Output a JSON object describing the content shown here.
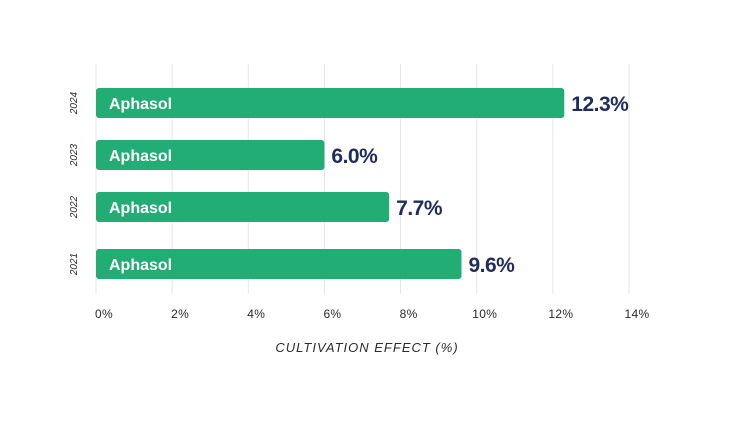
{
  "chart_data": {
    "type": "bar",
    "orientation": "horizontal",
    "categories": [
      "2024",
      "2023",
      "2022",
      "2021"
    ],
    "series": [
      {
        "name": "",
        "bar_label": "Aphasol",
        "values": [
          12.3,
          6.0,
          7.7,
          9.6
        ],
        "value_labels": [
          "12.3%",
          "6.0%",
          "7.7%",
          "9.6%"
        ]
      }
    ],
    "title": "",
    "xlabel": "CULTIVATION EFFECT (%)",
    "ylabel": "",
    "xlim": [
      0,
      14
    ],
    "x_ticks": [
      0,
      2,
      4,
      6,
      8,
      10,
      12,
      14
    ],
    "x_tick_labels": [
      "0%",
      "2%",
      "4%",
      "6%",
      "8%",
      "10%",
      "12%",
      "14%"
    ],
    "grid": true,
    "legend": "none",
    "colors": {
      "bar": "#22ad74",
      "value_text": "#1f2c5c",
      "grid": "#e6e6e6"
    }
  }
}
